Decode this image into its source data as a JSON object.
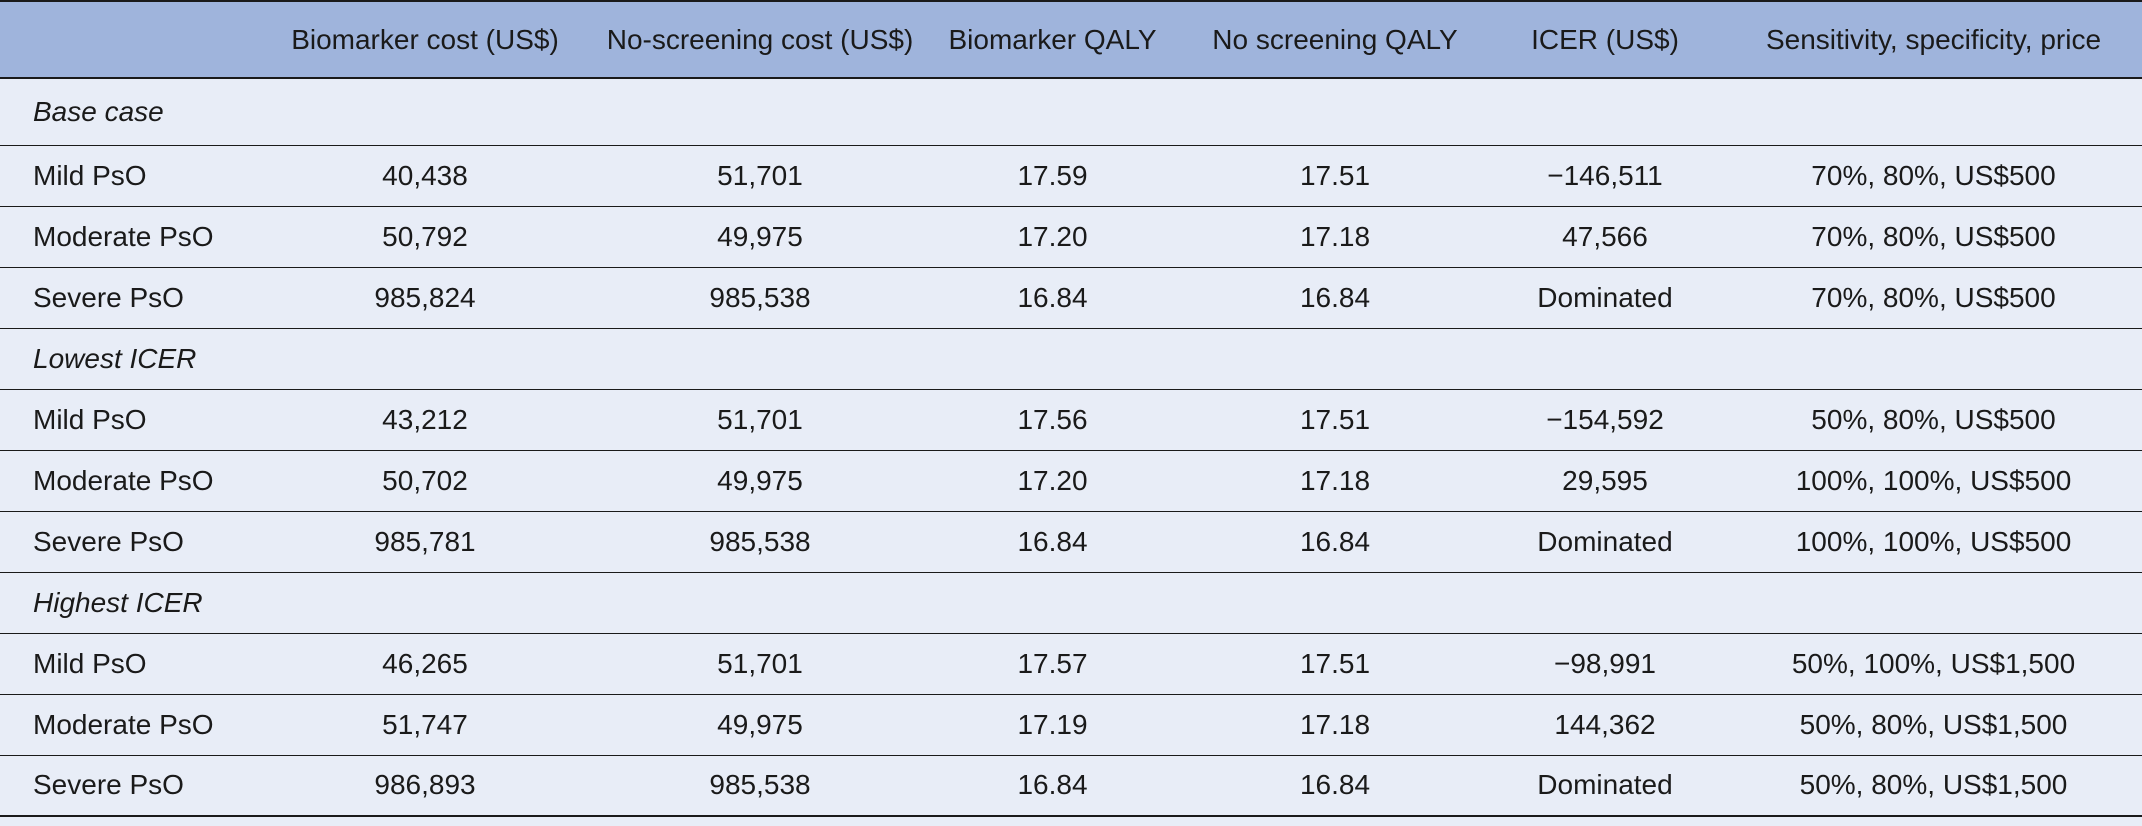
{
  "headers": [
    "",
    "Biomarker cost (US$)",
    "No-screening cost (US$)",
    "Biomarker QALY",
    "No screening QALY",
    "ICER (US$)",
    "Sensitivity, specificity, price"
  ],
  "sections": [
    {
      "title": "Base case",
      "rows": [
        {
          "label": "Mild PsO",
          "biomarker_cost": "40,438",
          "no_screening_cost": "51,701",
          "biomarker_qaly": "17.59",
          "no_screening_qaly": "17.51",
          "icer": "−146,511",
          "params": "70%, 80%, US$500"
        },
        {
          "label": "Moderate PsO",
          "biomarker_cost": "50,792",
          "no_screening_cost": "49,975",
          "biomarker_qaly": "17.20",
          "no_screening_qaly": "17.18",
          "icer": "47,566",
          "params": "70%, 80%, US$500"
        },
        {
          "label": "Severe PsO",
          "biomarker_cost": "985,824",
          "no_screening_cost": "985,538",
          "biomarker_qaly": "16.84",
          "no_screening_qaly": "16.84",
          "icer": "Dominated",
          "params": "70%, 80%, US$500"
        }
      ]
    },
    {
      "title": "Lowest ICER",
      "rows": [
        {
          "label": "Mild PsO",
          "biomarker_cost": "43,212",
          "no_screening_cost": "51,701",
          "biomarker_qaly": "17.56",
          "no_screening_qaly": "17.51",
          "icer": "−154,592",
          "params": "50%, 80%, US$500"
        },
        {
          "label": "Moderate PsO",
          "biomarker_cost": "50,702",
          "no_screening_cost": "49,975",
          "biomarker_qaly": "17.20",
          "no_screening_qaly": "17.18",
          "icer": "29,595",
          "params": "100%, 100%, US$500"
        },
        {
          "label": "Severe PsO",
          "biomarker_cost": "985,781",
          "no_screening_cost": "985,538",
          "biomarker_qaly": "16.84",
          "no_screening_qaly": "16.84",
          "icer": "Dominated",
          "params": "100%, 100%, US$500"
        }
      ]
    },
    {
      "title": "Highest ICER",
      "rows": [
        {
          "label": "Mild PsO",
          "biomarker_cost": "46,265",
          "no_screening_cost": "51,701",
          "biomarker_qaly": "17.57",
          "no_screening_qaly": "17.51",
          "icer": "−98,991",
          "params": "50%, 100%, US$1,500"
        },
        {
          "label": "Moderate PsO",
          "biomarker_cost": "51,747",
          "no_screening_cost": "49,975",
          "biomarker_qaly": "17.19",
          "no_screening_qaly": "17.18",
          "icer": "144,362",
          "params": "50%, 80%, US$1,500"
        },
        {
          "label": "Severe PsO",
          "biomarker_cost": "986,893",
          "no_screening_cost": "985,538",
          "biomarker_qaly": "16.84",
          "no_screening_qaly": "16.84",
          "icer": "Dominated",
          "params": "50%, 80%, US$1,500"
        }
      ]
    }
  ]
}
